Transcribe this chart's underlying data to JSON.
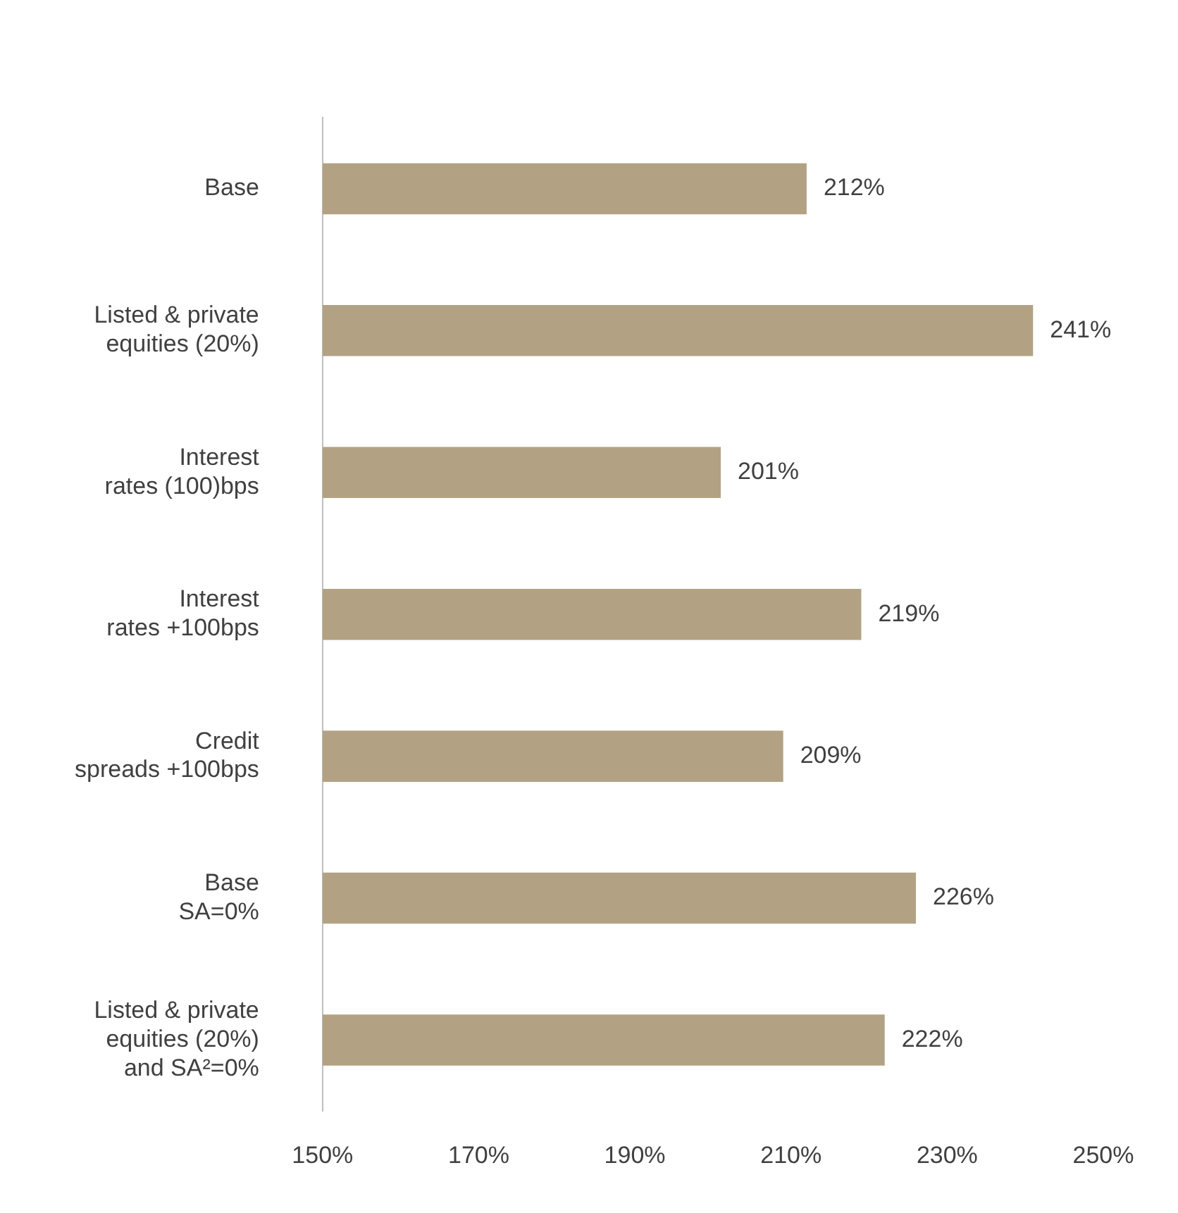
{
  "chart_data": {
    "type": "bar",
    "orientation": "horizontal",
    "categories": [
      "Base",
      "Listed & private\nequities (20%)",
      "Interest\nrates (100)bps",
      "Interest\nrates +100bps",
      "Credit\nspreads +100bps",
      "Base\nSA=0%",
      "Listed & private\nequities (20%)\nand SA²=0%"
    ],
    "values": [
      212,
      241,
      201,
      219,
      209,
      226,
      222
    ],
    "value_labels": [
      "212%",
      "241%",
      "201%",
      "219%",
      "209%",
      "226%",
      "222%"
    ],
    "color": "#b2a283",
    "xlim": [
      150,
      250
    ],
    "xticks": [
      {
        "value": 150,
        "label": "150%"
      },
      {
        "value": 170,
        "label": "170%"
      },
      {
        "value": 190,
        "label": "190%"
      },
      {
        "value": 210,
        "label": "210%"
      },
      {
        "value": 230,
        "label": "230%"
      },
      {
        "value": 250,
        "label": "250%"
      }
    ],
    "grid": false,
    "legend": false
  }
}
